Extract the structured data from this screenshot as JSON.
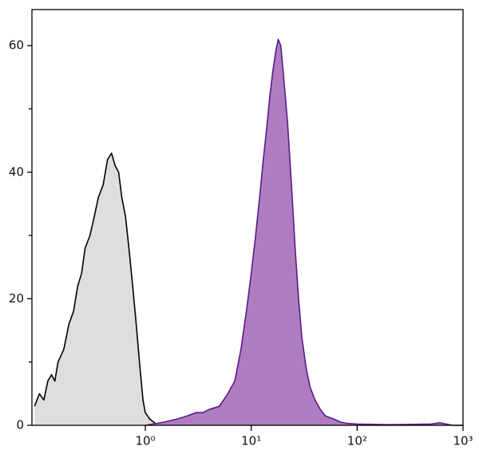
{
  "chart_data": {
    "type": "histogram-area",
    "xscale": "log",
    "xlim": [
      0.085,
      1000
    ],
    "ylim": [
      0,
      65.7
    ],
    "yticks": [
      0,
      20,
      40,
      60
    ],
    "yminorticks": [
      10,
      30,
      50
    ],
    "xticks": [
      {
        "value": 1,
        "label": "10⁰"
      },
      {
        "value": 10,
        "label": "10¹"
      },
      {
        "value": 100,
        "label": "10²"
      },
      {
        "value": 1000,
        "label": "10³"
      }
    ],
    "series": [
      {
        "color": "#000000",
        "fill": "#dedede",
        "x": [
          0.09,
          0.1,
          0.11,
          0.12,
          0.13,
          0.14,
          0.15,
          0.17,
          0.19,
          0.21,
          0.23,
          0.25,
          0.27,
          0.3,
          0.33,
          0.36,
          0.4,
          0.44,
          0.48,
          0.52,
          0.56,
          0.6,
          0.65,
          0.7,
          0.76,
          0.82,
          0.88,
          0.95,
          1.0,
          1.1,
          1.2,
          1.3
        ],
        "values": [
          3,
          5,
          4,
          7,
          8,
          7,
          10,
          12,
          16,
          18,
          22,
          24,
          28,
          30,
          33,
          36,
          38,
          42,
          43,
          41,
          40,
          36,
          33,
          28,
          22,
          16,
          10,
          4,
          2,
          1,
          0.5,
          0
        ]
      },
      {
        "color": "#5a1a8a",
        "fill": "#b07cc0",
        "x": [
          1.0,
          1.5,
          2,
          2.5,
          3,
          3.5,
          4,
          5,
          6,
          7,
          8,
          9,
          10,
          11,
          12,
          13,
          14,
          15,
          16,
          17,
          18,
          19,
          20,
          22,
          24,
          26,
          28,
          30,
          33,
          36,
          40,
          45,
          50,
          60,
          70,
          80,
          100,
          200,
          500,
          600,
          800,
          1000
        ],
        "values": [
          0,
          0.5,
          1,
          1.5,
          2,
          2,
          2.5,
          3,
          5,
          7,
          12,
          18,
          24,
          30,
          36,
          42,
          47,
          52,
          56,
          59,
          61,
          60,
          56,
          48,
          38,
          28,
          20,
          14,
          9,
          6,
          4,
          2.5,
          1.5,
          1,
          0.5,
          0.3,
          0.2,
          0.1,
          0.2,
          0.4,
          0,
          0
        ]
      }
    ]
  }
}
